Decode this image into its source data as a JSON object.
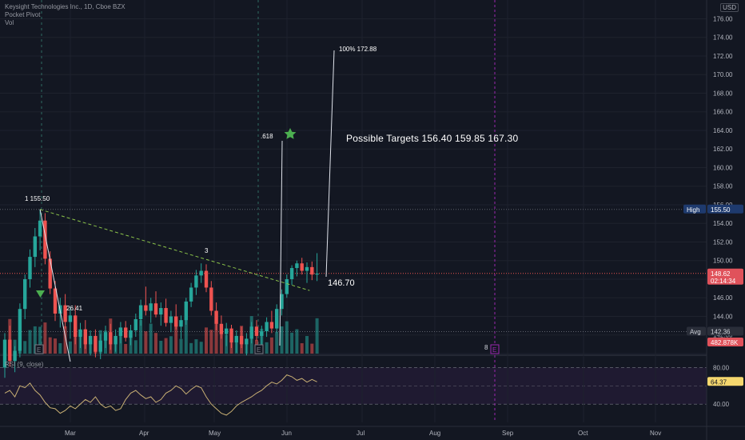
{
  "header": {
    "symbol_line": "Keysight Technologies Inc., 1D, Cboe BZX",
    "indicator": "Pocket Pivot",
    "volume_label": "Vol",
    "currency": "USD"
  },
  "annotations": {
    "targets_text": "Possible Targets   156.40   159.85    167.30",
    "label_1": "1 155.50",
    "label_3": "3",
    "label_618": ".618",
    "label_100": "100% 172.88",
    "label_2641": "26.41",
    "label_14670": "146.70",
    "label_8": "8",
    "earnings_letter": "E"
  },
  "price_badges": {
    "high_label": "High",
    "high_value": "155.50",
    "last_price": "148.62",
    "countdown": "02:14:34",
    "avg_label": "Avg",
    "avg_value": "142.36",
    "volume_value": "482.878K",
    "rsi_value": "64.37"
  },
  "rsi": {
    "label": "RSI (9, close)",
    "ticks": [
      "80.00",
      "40.00"
    ]
  },
  "colors": {
    "bg": "#131722",
    "up": "#26a69a",
    "down": "#ef5350",
    "trend": "#8bc34a",
    "rsi_line": "#c9b074",
    "rsi_band": "#2a1e3e",
    "last_badge": "#e0525b",
    "high_badge": "#1e3a6e",
    "rsi_badge": "#f5d76e",
    "purple": "#9c27b0"
  },
  "chart_data": {
    "type": "candlestick",
    "price_axis": {
      "ticks": [
        "176.00",
        "174.00",
        "172.00",
        "170.00",
        "168.00",
        "166.00",
        "164.00",
        "162.00",
        "160.00",
        "158.00",
        "156.00",
        "154.00",
        "152.00",
        "150.00",
        "148.00",
        "146.00",
        "144.00",
        "142.00",
        "140.00"
      ],
      "ylim": [
        140,
        177.5
      ]
    },
    "time_axis": [
      "Mar",
      "Apr",
      "May",
      "Jun",
      "Jul",
      "Aug",
      "Sep",
      "Oct",
      "Nov"
    ],
    "candles": [
      [
        138.5,
        142.2,
        137.4,
        141.5
      ],
      [
        141.5,
        143.0,
        138.6,
        139.2
      ],
      [
        139.2,
        140.8,
        138.0,
        140.3
      ],
      [
        140.3,
        145.4,
        139.6,
        144.8
      ],
      [
        144.8,
        148.5,
        143.7,
        148.0
      ],
      [
        148.0,
        151.2,
        147.1,
        150.4
      ],
      [
        150.4,
        153.5,
        149.3,
        152.6
      ],
      [
        152.6,
        155.5,
        151.1,
        154.3
      ],
      [
        154.3,
        155.1,
        149.6,
        150.2
      ],
      [
        150.2,
        151.0,
        146.4,
        147.0
      ],
      [
        147.0,
        147.8,
        143.5,
        144.3
      ],
      [
        144.3,
        146.0,
        142.8,
        145.2
      ],
      [
        145.2,
        146.4,
        142.7,
        143.4
      ],
      [
        143.4,
        145.0,
        141.6,
        144.1
      ],
      [
        144.1,
        145.2,
        141.0,
        141.8
      ],
      [
        141.8,
        143.3,
        140.6,
        142.6
      ],
      [
        142.6,
        143.6,
        140.5,
        141.0
      ],
      [
        141.0,
        142.5,
        139.8,
        141.9
      ],
      [
        141.9,
        142.6,
        139.6,
        140.2
      ],
      [
        140.2,
        142.1,
        139.4,
        141.4
      ],
      [
        141.4,
        143.0,
        140.6,
        142.3
      ],
      [
        142.3,
        143.2,
        140.4,
        141.0
      ],
      [
        141.0,
        142.6,
        140.2,
        141.9
      ],
      [
        141.9,
        143.4,
        141.1,
        142.8
      ],
      [
        142.8,
        143.5,
        141.3,
        141.7
      ],
      [
        141.7,
        143.1,
        140.9,
        142.5
      ],
      [
        142.5,
        144.3,
        141.8,
        143.7
      ],
      [
        143.7,
        145.8,
        143.0,
        145.2
      ],
      [
        145.2,
        147.2,
        144.1,
        144.6
      ],
      [
        144.6,
        146.0,
        143.3,
        145.4
      ],
      [
        145.4,
        146.7,
        143.9,
        144.2
      ],
      [
        144.2,
        145.5,
        143.0,
        144.9
      ],
      [
        144.9,
        145.9,
        142.9,
        143.3
      ],
      [
        143.3,
        144.6,
        142.3,
        144.0
      ],
      [
        144.0,
        145.3,
        142.6,
        142.9
      ],
      [
        142.9,
        144.1,
        141.6,
        143.6
      ],
      [
        143.6,
        146.0,
        143.1,
        145.6
      ],
      [
        145.6,
        147.6,
        145.0,
        147.1
      ],
      [
        147.1,
        149.0,
        146.3,
        148.4
      ],
      [
        148.4,
        149.7,
        147.6,
        148.9
      ],
      [
        148.9,
        149.6,
        146.6,
        147.1
      ],
      [
        147.1,
        147.8,
        144.1,
        144.6
      ],
      [
        144.6,
        145.5,
        142.5,
        143.2
      ],
      [
        143.2,
        144.1,
        141.6,
        142.1
      ],
      [
        142.1,
        143.3,
        140.8,
        142.7
      ],
      [
        142.7,
        143.1,
        140.6,
        141.2
      ],
      [
        141.2,
        142.5,
        140.1,
        141.9
      ],
      [
        141.9,
        142.9,
        140.6,
        141.0
      ],
      [
        141.0,
        142.2,
        139.8,
        141.6
      ],
      [
        141.6,
        143.4,
        141.1,
        142.9
      ],
      [
        142.9,
        143.6,
        141.4,
        141.9
      ],
      [
        141.9,
        143.0,
        140.9,
        142.4
      ],
      [
        142.4,
        143.9,
        141.8,
        143.4
      ],
      [
        143.4,
        144.6,
        142.2,
        142.7
      ],
      [
        142.7,
        145.3,
        142.2,
        144.8
      ],
      [
        144.8,
        146.9,
        144.1,
        146.4
      ],
      [
        146.4,
        148.5,
        146.0,
        148.0
      ],
      [
        148.0,
        149.5,
        147.4,
        149.2
      ],
      [
        149.2,
        150.0,
        148.3,
        149.7
      ],
      [
        149.7,
        150.3,
        148.5,
        148.9
      ],
      [
        148.9,
        149.8,
        147.6,
        149.3
      ],
      [
        149.3,
        149.9,
        147.9,
        148.5
      ],
      [
        148.5,
        150.8,
        147.8,
        148.6
      ]
    ],
    "volume_max": 1000000,
    "trendline": [
      {
        "i": 7,
        "price": 155.5
      },
      {
        "i": 51,
        "price": 146.7
      }
    ],
    "retracement_lines": [
      {
        "from": 155.5,
        "to": 138.3,
        "i_from": 7,
        "i_to": 13
      }
    ],
    "rsi_values": [
      52,
      55,
      48,
      60,
      58,
      63,
      55,
      50,
      42,
      36,
      35,
      30,
      33,
      38,
      35,
      40,
      45,
      42,
      48,
      40,
      36,
      38,
      33,
      35,
      45,
      52,
      55,
      50,
      46,
      48,
      42,
      45,
      52,
      55,
      60,
      57,
      51,
      56,
      60,
      58,
      48,
      40,
      35,
      30,
      28,
      32,
      38,
      42,
      45,
      48,
      52,
      55,
      60,
      64,
      62,
      66,
      72,
      70,
      66,
      68,
      64,
      67,
      64.37
    ],
    "rsi_range": [
      20,
      90
    ]
  }
}
